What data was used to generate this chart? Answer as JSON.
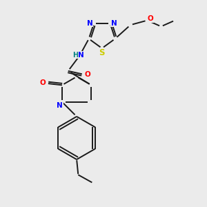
{
  "background_color": "#ebebeb",
  "bond_color": "#1a1a1a",
  "N_color": "#0000ff",
  "S_color": "#cccc00",
  "O_color": "#ff0000",
  "H_color": "#008080",
  "lw": 1.4,
  "fs": 7.5,
  "figsize": [
    3.0,
    3.0
  ],
  "dpi": 100,
  "xlim": [
    30,
    270
  ],
  "ylim": [
    20,
    290
  ]
}
